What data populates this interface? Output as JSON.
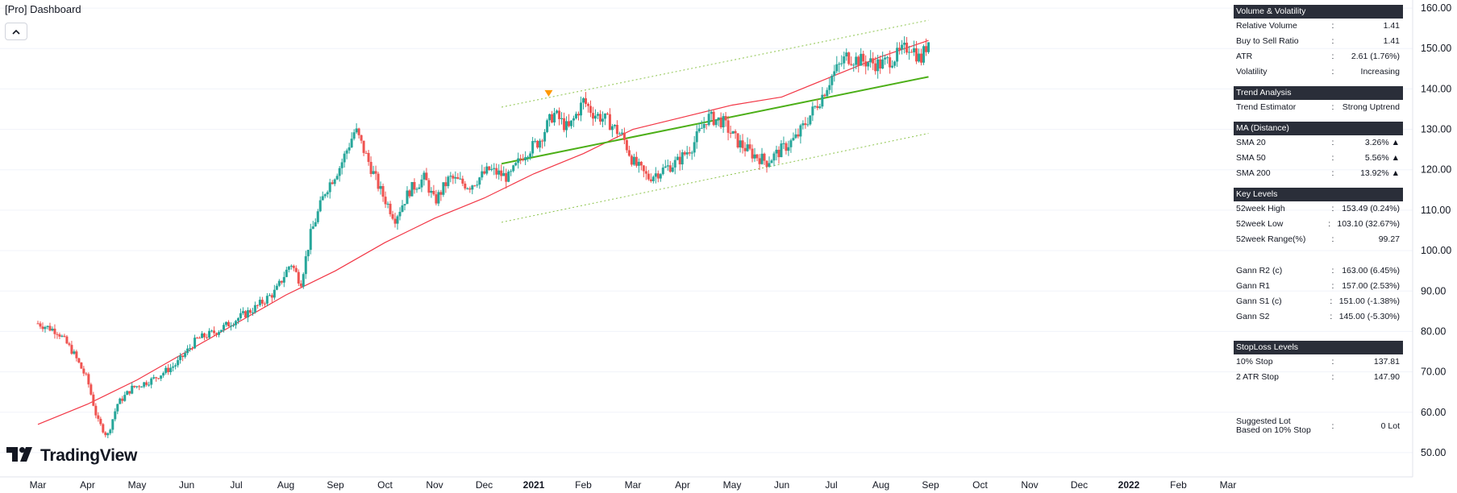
{
  "header": {
    "title": "[Pro] Dashboard",
    "collapse_icon": "chevron-up-icon"
  },
  "brand": {
    "name": "TradingView"
  },
  "chart_data": {
    "type": "candlestick",
    "ylim": [
      46,
      164
    ],
    "y_ticks": [
      50,
      60,
      70,
      80,
      90,
      100,
      110,
      120,
      130,
      140,
      150,
      160
    ],
    "y_tick_labels": [
      "50.00",
      "60.00",
      "70.00",
      "80.00",
      "90.00",
      "100.00",
      "110.00",
      "120.00",
      "130.00",
      "140.00",
      "150.00",
      "160.00"
    ],
    "x_labels": [
      "Mar",
      "Apr",
      "May",
      "Jun",
      "Jul",
      "Aug",
      "Sep",
      "Oct",
      "Nov",
      "Dec",
      "2021",
      "Feb",
      "Mar",
      "Apr",
      "May",
      "Jun",
      "Jul",
      "Aug",
      "Sep",
      "Oct",
      "Nov",
      "Dec",
      "2022",
      "Feb",
      "Mar"
    ],
    "x_label_bold": [
      false,
      false,
      false,
      false,
      false,
      false,
      false,
      false,
      false,
      false,
      true,
      false,
      false,
      false,
      false,
      false,
      false,
      false,
      false,
      false,
      false,
      false,
      true,
      false,
      false
    ],
    "price_path": [
      [
        0,
        82
      ],
      [
        0.4,
        80
      ],
      [
        0.7,
        75
      ],
      [
        1.0,
        68
      ],
      [
        1.2,
        58
      ],
      [
        1.4,
        54
      ],
      [
        1.6,
        62
      ],
      [
        1.9,
        66
      ],
      [
        2.3,
        68
      ],
      [
        2.8,
        72
      ],
      [
        3.2,
        78
      ],
      [
        3.6,
        80
      ],
      [
        4.0,
        83
      ],
      [
        4.4,
        86
      ],
      [
        4.8,
        90
      ],
      [
        5.1,
        97
      ],
      [
        5.3,
        92
      ],
      [
        5.5,
        104
      ],
      [
        5.8,
        115
      ],
      [
        6.1,
        121
      ],
      [
        6.4,
        130
      ],
      [
        6.6,
        124
      ],
      [
        6.9,
        115
      ],
      [
        7.2,
        108
      ],
      [
        7.5,
        115
      ],
      [
        7.8,
        118
      ],
      [
        8.0,
        112
      ],
      [
        8.3,
        118
      ],
      [
        8.7,
        116
      ],
      [
        9.1,
        120
      ],
      [
        9.5,
        118
      ],
      [
        9.8,
        124
      ],
      [
        10.1,
        127
      ],
      [
        10.4,
        134
      ],
      [
        10.7,
        130
      ],
      [
        11.0,
        137
      ],
      [
        11.2,
        134
      ],
      [
        11.5,
        132
      ],
      [
        11.8,
        128
      ],
      [
        12.0,
        122
      ],
      [
        12.3,
        118
      ],
      [
        12.6,
        120
      ],
      [
        12.9,
        122
      ],
      [
        13.2,
        126
      ],
      [
        13.5,
        133
      ],
      [
        13.8,
        132
      ],
      [
        14.1,
        127
      ],
      [
        14.4,
        124
      ],
      [
        14.7,
        122
      ],
      [
        15.0,
        125
      ],
      [
        15.3,
        128
      ],
      [
        15.6,
        134
      ],
      [
        15.8,
        138
      ],
      [
        16.0,
        143
      ],
      [
        16.3,
        148
      ],
      [
        16.6,
        147
      ],
      [
        17.0,
        146
      ],
      [
        17.3,
        148
      ],
      [
        17.6,
        151
      ],
      [
        17.8,
        147
      ],
      [
        17.96,
        152
      ]
    ],
    "candle_count": 370,
    "sma200": [
      [
        0,
        57
      ],
      [
        1,
        62
      ],
      [
        2,
        68
      ],
      [
        3,
        75
      ],
      [
        4,
        82
      ],
      [
        5,
        89
      ],
      [
        6,
        95
      ],
      [
        7,
        102
      ],
      [
        8,
        108
      ],
      [
        9,
        113
      ],
      [
        10,
        119
      ],
      [
        11,
        124
      ],
      [
        12,
        130
      ],
      [
        13,
        133
      ],
      [
        14,
        136
      ],
      [
        15,
        138
      ],
      [
        16,
        143
      ],
      [
        17,
        148
      ],
      [
        17.96,
        152
      ]
    ],
    "trend_line": {
      "start": [
        9.35,
        121.5
      ],
      "end": [
        17.96,
        143
      ]
    },
    "channel_upper": {
      "start": [
        9.35,
        135.5
      ],
      "end": [
        17.96,
        157
      ]
    },
    "channel_lower": {
      "start": [
        9.35,
        107
      ],
      "end": [
        17.96,
        129
      ]
    },
    "marker": {
      "x": 10.3,
      "y": 138.5,
      "shape": "triangle-down",
      "color": "#ff9800"
    },
    "colors": {
      "up": "#26a69a",
      "down": "#ef5350",
      "sma": "#f23645",
      "trend": "#4caf17",
      "channel": "#8bc34a",
      "grid": "#f0f3fa"
    }
  },
  "dashboard": {
    "volume": {
      "header": "Volume & Volatility",
      "rows": [
        {
          "label": "Relative Volume",
          "sep": ":",
          "value": "1.41"
        },
        {
          "label": "Buy to Sell Ratio",
          "sep": ":",
          "value": "1.41"
        },
        {
          "label": "ATR",
          "sep": ":",
          "value": "2.61 (1.76%)"
        },
        {
          "label": "Volatility",
          "sep": ":",
          "value": "Increasing"
        }
      ]
    },
    "trend": {
      "header": "Trend Analysis",
      "rows": [
        {
          "label": "Trend Estimator",
          "sep": ":",
          "value": "Strong Uptrend"
        }
      ]
    },
    "ma": {
      "header": "MA (Distance)",
      "rows": [
        {
          "label": "SMA 20",
          "sep": ":",
          "value": "3.26% ▲"
        },
        {
          "label": "SMA 50",
          "sep": ":",
          "value": "5.56% ▲"
        },
        {
          "label": "SMA 200",
          "sep": ":",
          "value": "13.92% ▲"
        }
      ]
    },
    "levels": {
      "header": "Key Levels",
      "rows": [
        {
          "label": "52week High",
          "sep": ":",
          "value": "153.49 (0.24%)"
        },
        {
          "label": "52week Low",
          "sep": ":",
          "value": "103.10 (32.67%)"
        },
        {
          "label": "52week Range(%)",
          "sep": ":",
          "value": "99.27"
        }
      ],
      "gann": [
        {
          "label": "Gann R2 (c)",
          "sep": ":",
          "value": "163.00 (6.45%)"
        },
        {
          "label": "Gann R1",
          "sep": ":",
          "value": "157.00 (2.53%)"
        },
        {
          "label": "Gann S1 (c)",
          "sep": ":",
          "value": "151.00 (-1.38%)"
        },
        {
          "label": "Gann S2",
          "sep": ":",
          "value": "145.00 (-5.30%)"
        }
      ]
    },
    "stoploss": {
      "header": "StopLoss Levels",
      "rows": [
        {
          "label": "10% Stop",
          "sep": ":",
          "value": "137.81"
        },
        {
          "label": "2 ATR Stop",
          "sep": ":",
          "value": "147.90"
        }
      ],
      "lot": {
        "label_line1": "Suggested Lot",
        "label_line2": "Based on 10% Stop",
        "sep": ":",
        "value": "0 Lot"
      }
    }
  }
}
